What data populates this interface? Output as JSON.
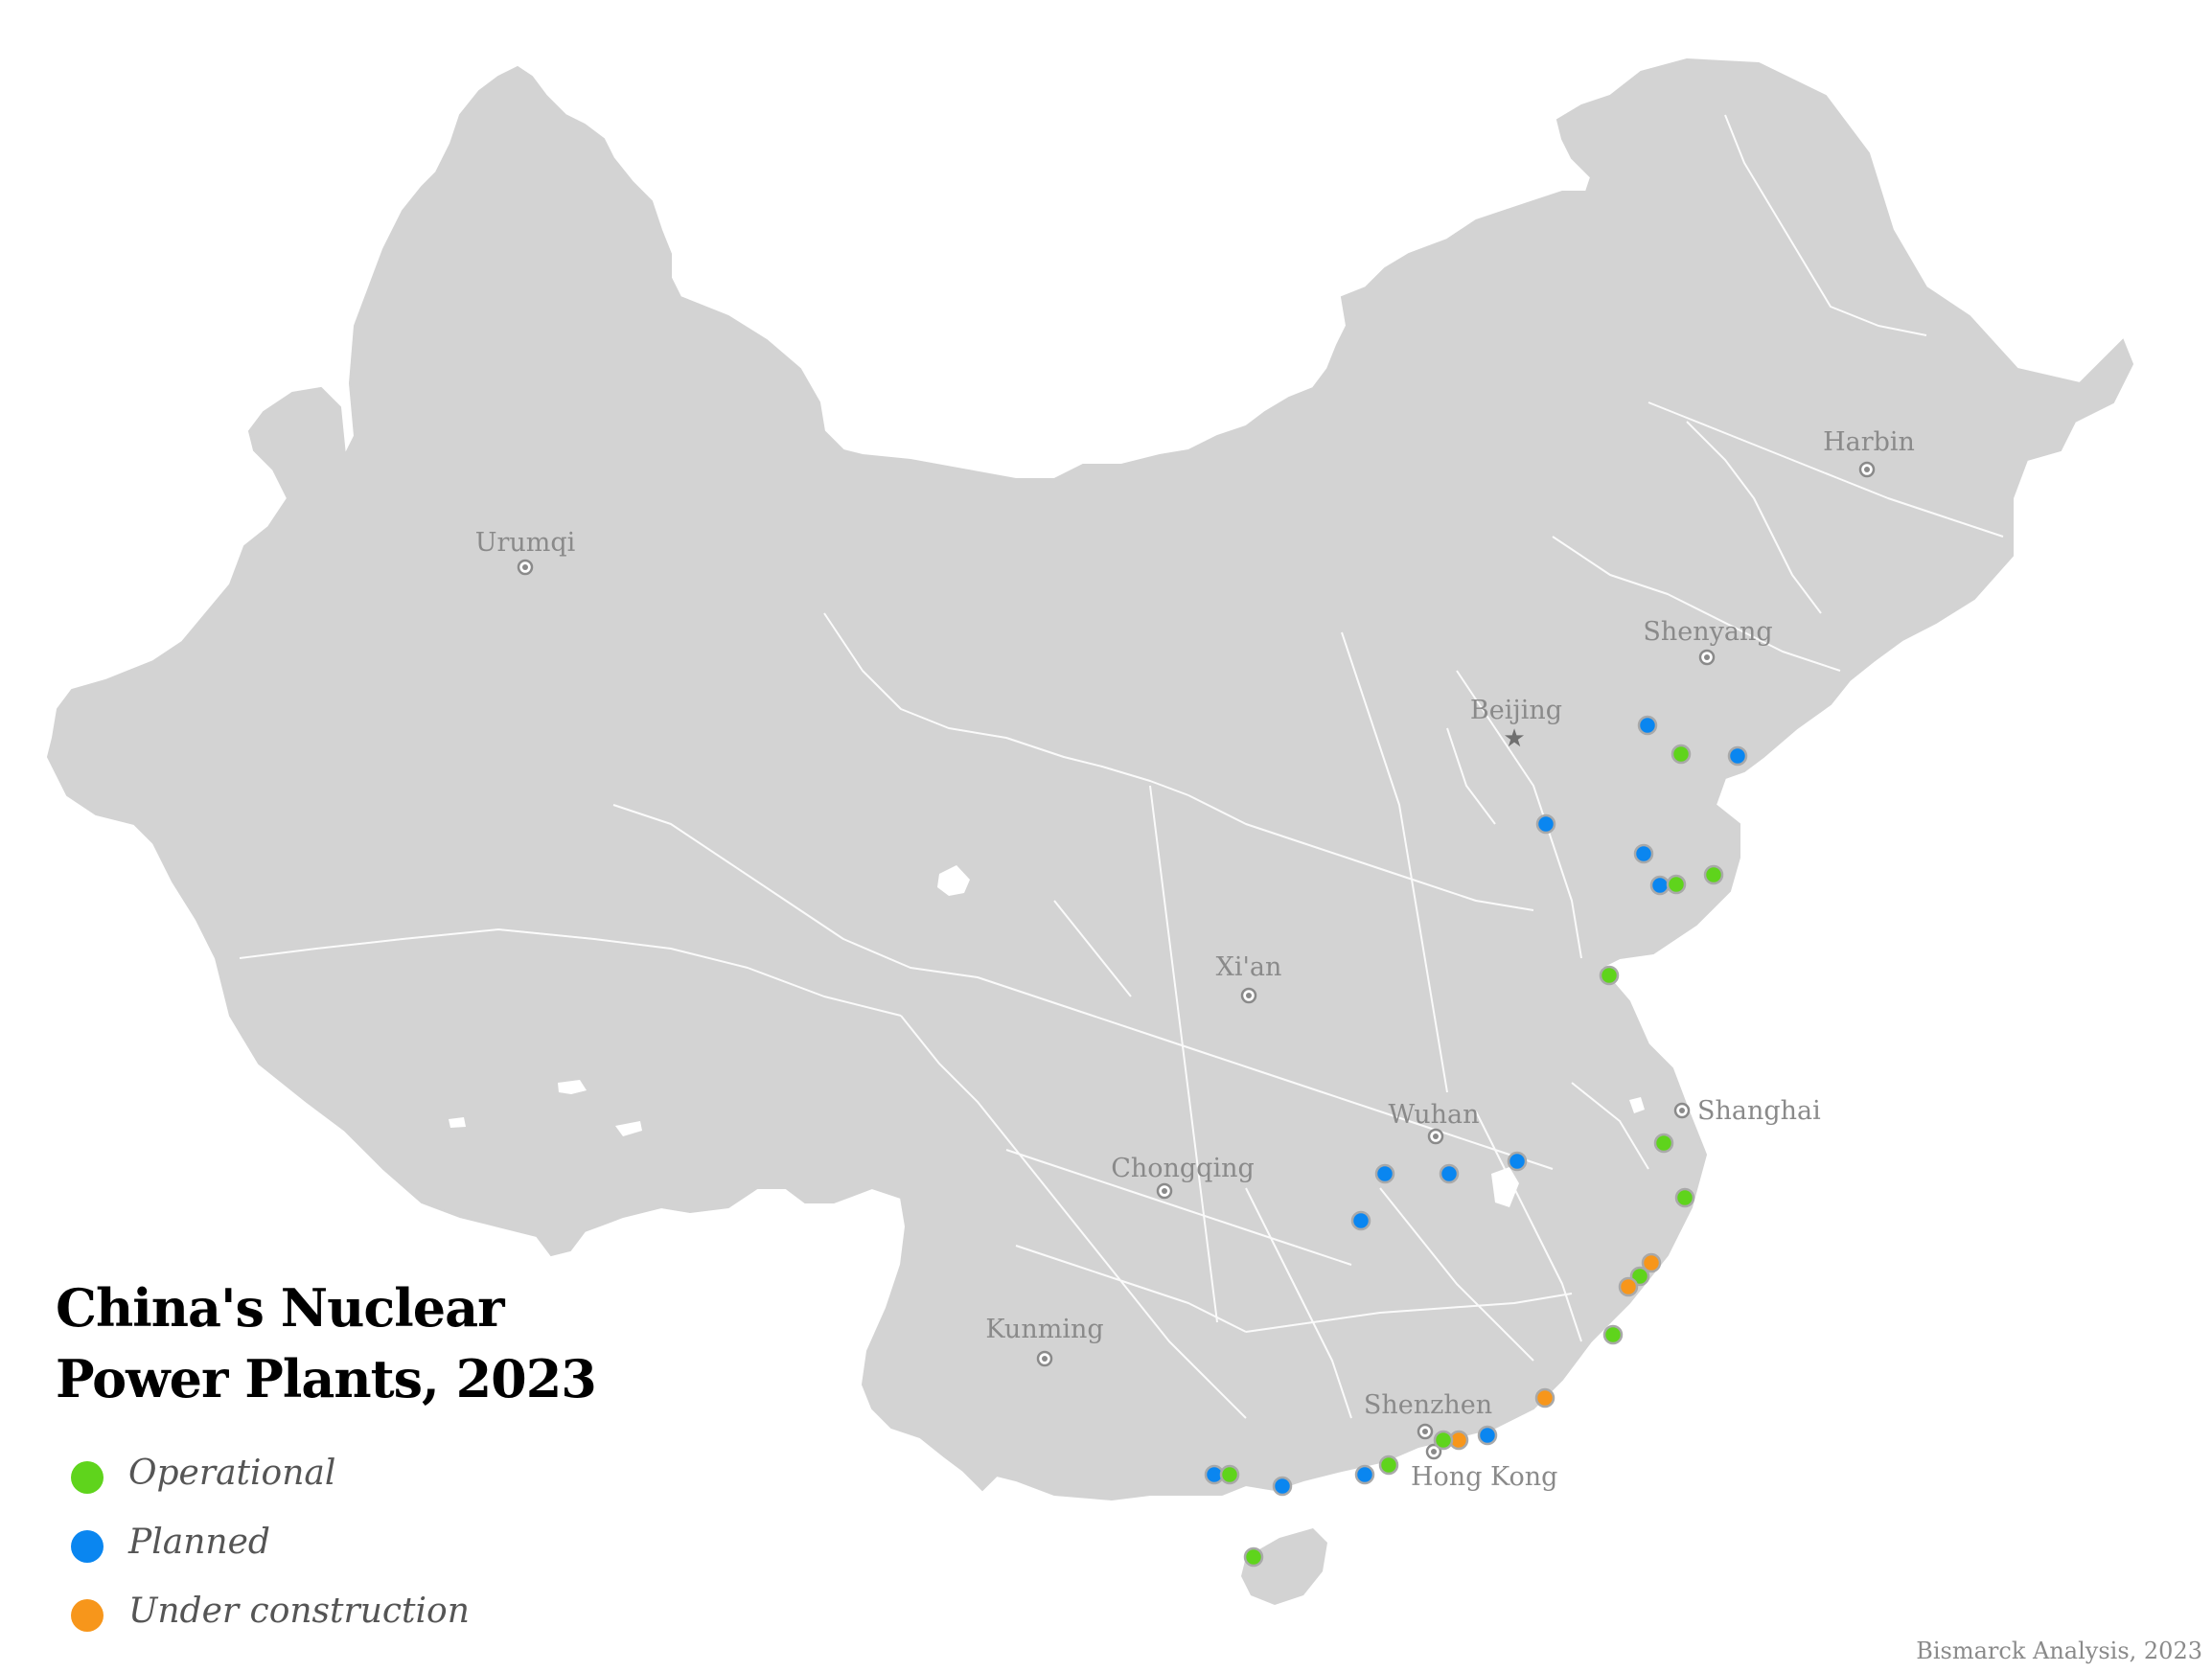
{
  "map": {
    "title_line1": "China's Nuclear",
    "title_line2": "Power Plants, 2023",
    "credit": "Bismarck Analysis, 2023",
    "colors": {
      "land": "#d3d3d3",
      "border": "#ffffff",
      "operational": "#5fd41c",
      "planned": "#0a86f0",
      "under_construction": "#f7961b",
      "city": "#8a8a8a"
    },
    "legend": [
      {
        "key": "operational",
        "label": "Operational"
      },
      {
        "key": "planned",
        "label": "Planned"
      },
      {
        "key": "under_construction",
        "label": "Under construction"
      }
    ],
    "cities": [
      {
        "name": "Urumqi",
        "marker": "circle"
      },
      {
        "name": "Harbin",
        "marker": "circle"
      },
      {
        "name": "Shenyang",
        "marker": "circle"
      },
      {
        "name": "Beijing",
        "marker": "star"
      },
      {
        "name": "Xi'an",
        "marker": "circle"
      },
      {
        "name": "Shanghai",
        "marker": "circle"
      },
      {
        "name": "Wuhan",
        "marker": "circle"
      },
      {
        "name": "Chongqing",
        "marker": "circle"
      },
      {
        "name": "Kunming",
        "marker": "circle"
      },
      {
        "name": "Shenzhen",
        "marker": "circle"
      },
      {
        "name": "Hong Kong",
        "marker": "circle"
      }
    ],
    "plants": [
      {
        "status": "planned"
      },
      {
        "status": "operational"
      },
      {
        "status": "planned"
      },
      {
        "status": "planned"
      },
      {
        "status": "planned"
      },
      {
        "status": "planned"
      },
      {
        "status": "operational"
      },
      {
        "status": "operational"
      },
      {
        "status": "operational"
      },
      {
        "status": "operational"
      },
      {
        "status": "planned"
      },
      {
        "status": "planned"
      },
      {
        "status": "planned"
      },
      {
        "status": "planned"
      },
      {
        "status": "operational"
      },
      {
        "status": "under_construction"
      },
      {
        "status": "operational"
      },
      {
        "status": "under_construction"
      },
      {
        "status": "operational"
      },
      {
        "status": "under_construction"
      },
      {
        "status": "planned"
      },
      {
        "status": "under_construction"
      },
      {
        "status": "operational"
      },
      {
        "status": "operational"
      },
      {
        "status": "planned"
      },
      {
        "status": "planned"
      },
      {
        "status": "planned"
      },
      {
        "status": "operational"
      },
      {
        "status": "operational"
      }
    ]
  }
}
